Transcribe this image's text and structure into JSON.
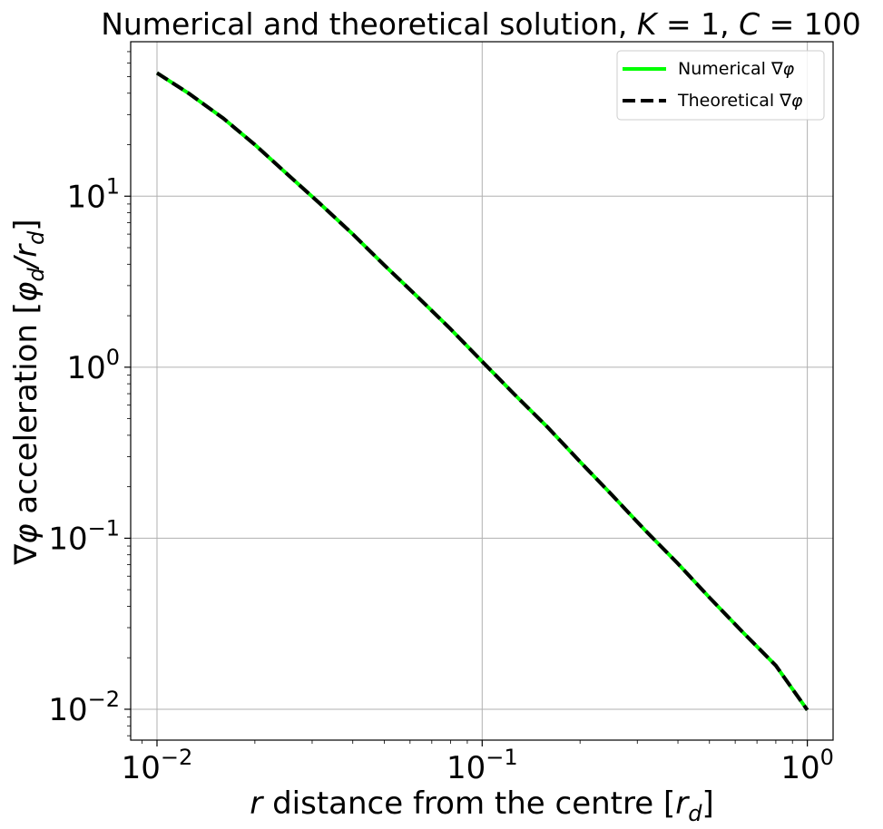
{
  "chart_data": {
    "type": "line",
    "title": "Numerical and theoretical solution, K = 1, C = 100",
    "title_parts": {
      "prefix": "Numerical and theoretical solution, ",
      "k_symbol": "K",
      "k_value": " = 1, ",
      "c_symbol": "C",
      "c_value": " = 100"
    },
    "xlabel": "r distance from the centre [r_d]",
    "xlabel_parts": {
      "var": "r",
      "text": " distance from the centre [",
      "unit": "r",
      "unit_sub": "d",
      "close": "]"
    },
    "ylabel": "∇φ acceleration [φ_d/r_d]",
    "ylabel_parts": {
      "prefix": "∇",
      "phi": "φ",
      "text": " acceleration [",
      "num": "φ",
      "num_sub": "d",
      "slash": "/",
      "den": "r",
      "den_sub": "d",
      "close": "]"
    },
    "x_scale": "log",
    "y_scale": "log",
    "xlim": [
      0.0083,
      1.2
    ],
    "ylim": [
      0.0066,
      80
    ],
    "grid": true,
    "legend_placement": "top-right",
    "x_ticks": [
      {
        "value": 0.01,
        "base": "10",
        "exp": "−2"
      },
      {
        "value": 0.1,
        "base": "10",
        "exp": "−1"
      },
      {
        "value": 1,
        "base": "10",
        "exp": "0"
      }
    ],
    "y_ticks": [
      {
        "value": 0.01,
        "base": "10",
        "exp": "−2"
      },
      {
        "value": 0.1,
        "base": "10",
        "exp": "−1"
      },
      {
        "value": 1,
        "base": "10",
        "exp": "0"
      },
      {
        "value": 10,
        "base": "10",
        "exp": "1"
      }
    ],
    "series": [
      {
        "name": "Numerical ∇φ",
        "name_parts": {
          "text": "Numerical ∇",
          "phi": "φ"
        },
        "style": "solid",
        "color": "#00ff00",
        "x": [
          0.01,
          0.0125,
          0.016,
          0.02,
          0.025,
          0.0316,
          0.04,
          0.05,
          0.063,
          0.08,
          0.1,
          0.126,
          0.16,
          0.2,
          0.25,
          0.316,
          0.4,
          0.5,
          0.63,
          0.8,
          1.0
        ],
        "y": [
          52.5,
          40,
          28.5,
          20,
          13.6,
          9.1,
          6.0,
          3.95,
          2.6,
          1.67,
          1.08,
          0.69,
          0.44,
          0.28,
          0.18,
          0.112,
          0.071,
          0.045,
          0.0285,
          0.018,
          0.0099
        ]
      },
      {
        "name": "Theoretical ∇φ",
        "name_parts": {
          "text": "Theoretical ∇",
          "phi": "φ"
        },
        "style": "dashed",
        "color": "#000000",
        "x": [
          0.01,
          0.0125,
          0.016,
          0.02,
          0.025,
          0.0316,
          0.04,
          0.05,
          0.063,
          0.08,
          0.1,
          0.126,
          0.16,
          0.2,
          0.25,
          0.316,
          0.4,
          0.5,
          0.63,
          0.8,
          1.0
        ],
        "y": [
          52.5,
          40,
          28.5,
          20,
          13.6,
          9.1,
          6.0,
          3.95,
          2.6,
          1.67,
          1.08,
          0.69,
          0.44,
          0.28,
          0.18,
          0.112,
          0.071,
          0.045,
          0.0285,
          0.018,
          0.0099
        ]
      }
    ]
  }
}
